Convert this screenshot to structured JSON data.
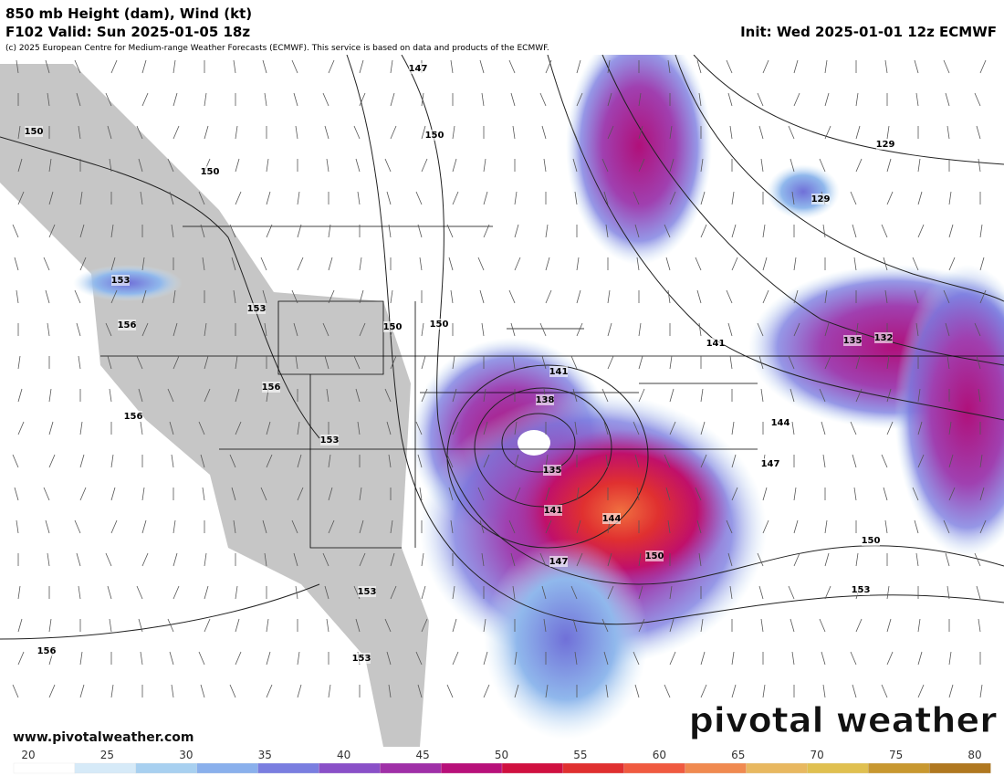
{
  "header": {
    "title": "850 mb Height (dam), Wind (kt)",
    "valid": "F102 Valid: Sun 2025-01-05 18z",
    "init": "Init: Wed 2025-01-01 12z ECMWF",
    "credit": "(c) 2025 European Centre for Medium-range Weather Forecasts (ECMWF). This service is based on data and products of the ECMWF."
  },
  "contour_labels": [
    147,
    150,
    150,
    150,
    129,
    129,
    153,
    153,
    156,
    150,
    150,
    141,
    135,
    132,
    141,
    138,
    156,
    156,
    144,
    153,
    135,
    147,
    141,
    144,
    147,
    150,
    150,
    153,
    153,
    153,
    156
  ],
  "watermark": "pivotal weather",
  "website": "www.pivotalweather.com",
  "colorbar": {
    "ticks": [
      20,
      25,
      30,
      35,
      40,
      45,
      50,
      55,
      60,
      65,
      70,
      75,
      80
    ]
  }
}
